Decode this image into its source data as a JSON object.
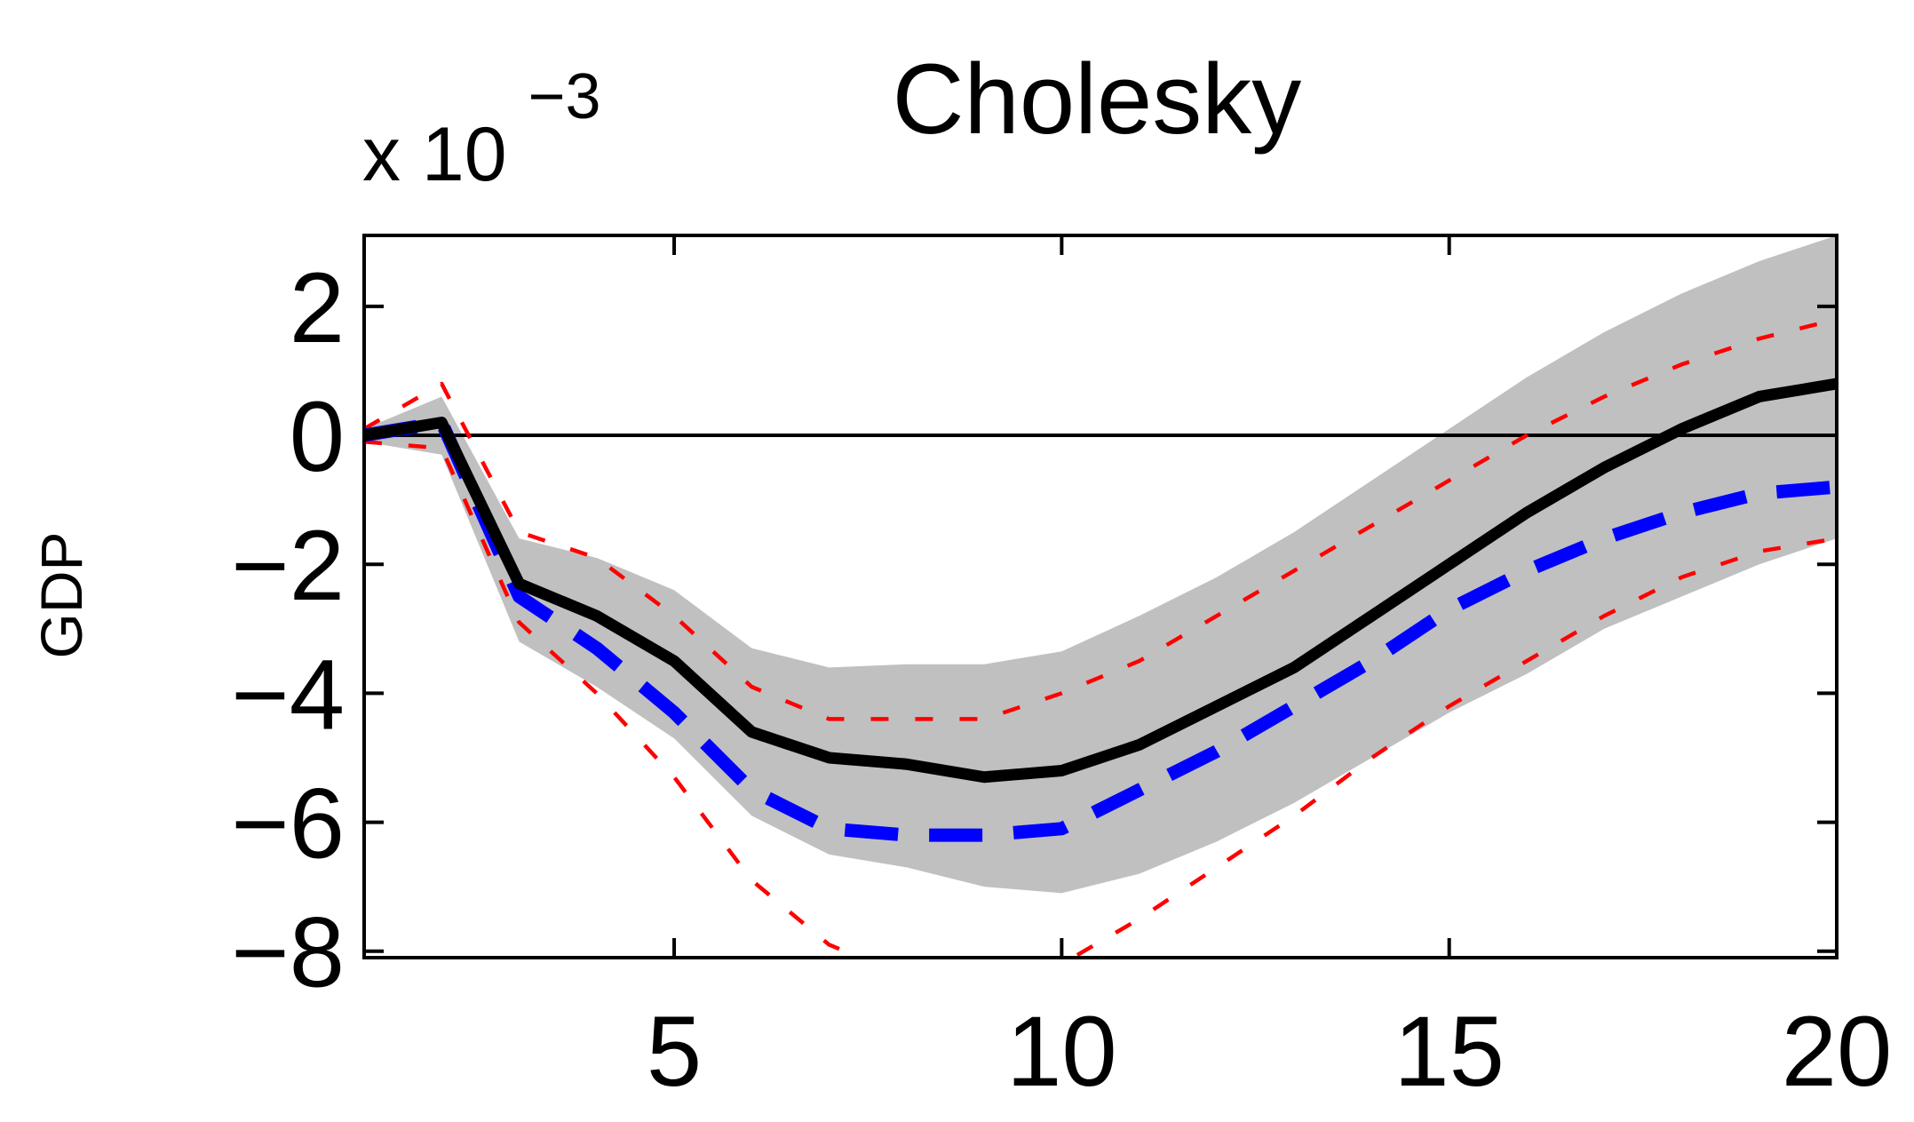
{
  "chart_data": {
    "type": "line",
    "title": "Cholesky",
    "ylabel": "GDP",
    "exponent_label": {
      "base": "x 10",
      "power": "−3"
    },
    "xlim": [
      1,
      20
    ],
    "ylim": [
      -8.1,
      3.1
    ],
    "x_ticks": [
      5,
      10,
      15,
      20
    ],
    "y_ticks": [
      2,
      0,
      -2,
      -4,
      -6,
      -8
    ],
    "y_tick_labels": [
      "2",
      "0",
      "−2",
      "−4",
      "−6",
      "−8"
    ],
    "x": [
      1,
      2,
      3,
      4,
      5,
      6,
      7,
      8,
      9,
      10,
      11,
      12,
      13,
      14,
      15,
      16,
      17,
      18,
      19,
      20
    ],
    "band": {
      "color": "#c0c0c0",
      "lower": [
        -0.1,
        -0.3,
        -3.2,
        -3.9,
        -4.7,
        -5.9,
        -6.5,
        -6.7,
        -7.0,
        -7.1,
        -6.8,
        -6.3,
        -5.7,
        -5.0,
        -4.3,
        -3.7,
        -3.0,
        -2.5,
        -2.0,
        -1.6
      ],
      "upper": [
        0.1,
        0.6,
        -1.6,
        -1.9,
        -2.4,
        -3.3,
        -3.6,
        -3.55,
        -3.55,
        -3.35,
        -2.8,
        -2.2,
        -1.5,
        -0.7,
        0.1,
        0.9,
        1.6,
        2.2,
        2.7,
        3.1
      ]
    },
    "series": [
      {
        "style": "solid",
        "color": "#000000",
        "values": [
          0.0,
          0.2,
          -2.3,
          -2.8,
          -3.5,
          -4.6,
          -5.0,
          -5.1,
          -5.3,
          -5.2,
          -4.8,
          -4.2,
          -3.6,
          -2.8,
          -2.0,
          -1.2,
          -0.5,
          0.1,
          0.6,
          0.8
        ]
      },
      {
        "style": "dashed",
        "color": "#0000ff",
        "values": [
          0.0,
          0.2,
          -2.5,
          -3.3,
          -4.3,
          -5.5,
          -6.1,
          -6.2,
          -6.2,
          -6.1,
          -5.5,
          -4.9,
          -4.2,
          -3.5,
          -2.7,
          -2.1,
          -1.6,
          -1.2,
          -0.9,
          -0.8
        ]
      },
      {
        "style": "dotted",
        "color": "#ff0000",
        "values": [
          0.1,
          0.8,
          -1.5,
          -1.9,
          -2.8,
          -3.9,
          -4.4,
          -4.4,
          -4.4,
          -4.0,
          -3.5,
          -2.8,
          -2.1,
          -1.4,
          -0.7,
          0.0,
          0.6,
          1.1,
          1.5,
          1.8
        ]
      },
      {
        "style": "dotted",
        "color": "#ff0000",
        "values": [
          -0.1,
          -0.2,
          -2.9,
          -4.0,
          -5.3,
          -6.9,
          -7.9,
          -8.4,
          -8.5,
          -8.2,
          -7.5,
          -6.7,
          -5.9,
          -5.0,
          -4.2,
          -3.5,
          -2.8,
          -2.2,
          -1.8,
          -1.6
        ]
      }
    ],
    "zero_line": {
      "value": 0,
      "color": "#000000"
    },
    "grid": false,
    "legend": "none"
  }
}
